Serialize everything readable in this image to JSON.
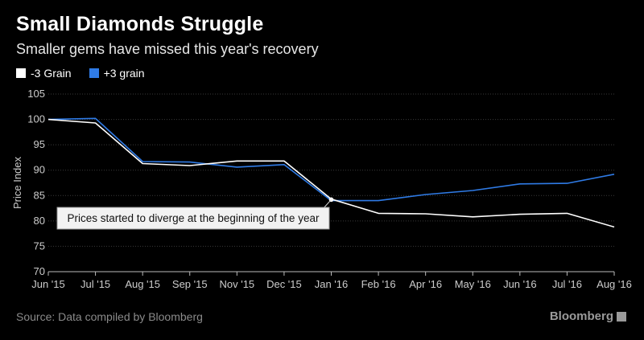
{
  "title": "Small Diamonds Struggle",
  "subtitle": "Smaller gems have missed this year's recovery",
  "source": "Source: Data compiled by Bloomberg",
  "brand": "Bloomberg",
  "brand_icon": "bloomberg-terminal-icon",
  "colors": {
    "minus3": "#ffffff",
    "plus3": "#2f7be6",
    "grid": "#3a3a3a",
    "axis": "#cccccc"
  },
  "chart_data": {
    "type": "line",
    "title": "Small Diamonds Struggle",
    "subtitle": "Smaller gems have missed this year's recovery",
    "xlabel": "",
    "ylabel": "Price Index",
    "ylim": [
      70,
      105
    ],
    "yticks": [
      70,
      75,
      80,
      85,
      90,
      95,
      100,
      105
    ],
    "grid": true,
    "legend_position": "top-left",
    "x": [
      "Jun '15",
      "Jul '15",
      "Aug '15",
      "Sep '15",
      "Nov '15",
      "Dec '15",
      "Jan '16",
      "Feb '16",
      "Apr '16",
      "May '16",
      "Jun '16",
      "Jul '16",
      "Aug '16"
    ],
    "x_labels": [
      "Jun '15",
      "Jul '15",
      "Aug '15",
      "Sep '15",
      "Nov '15",
      "Dec '15",
      "Jan '16",
      "Feb '16",
      "Apr '16",
      "May '16",
      "Jun '16",
      "Jul '16",
      "Aug '16"
    ],
    "series": [
      {
        "name": "-3 Grain",
        "color": "#ffffff",
        "values": [
          100.0,
          99.3,
          91.3,
          90.9,
          91.8,
          91.8,
          84.3,
          81.5,
          81.4,
          80.8,
          81.3,
          81.5,
          78.8
        ]
      },
      {
        "name": "+3 grain",
        "color": "#2f7be6",
        "values": [
          100.0,
          100.2,
          91.7,
          91.6,
          90.6,
          91.1,
          84.0,
          84.0,
          85.2,
          86.0,
          87.3,
          87.4,
          89.2
        ]
      }
    ],
    "annotations": [
      {
        "text": "Prices started to diverge at the beginning of the year",
        "x": "Jan '16",
        "y": 84.2
      }
    ]
  }
}
